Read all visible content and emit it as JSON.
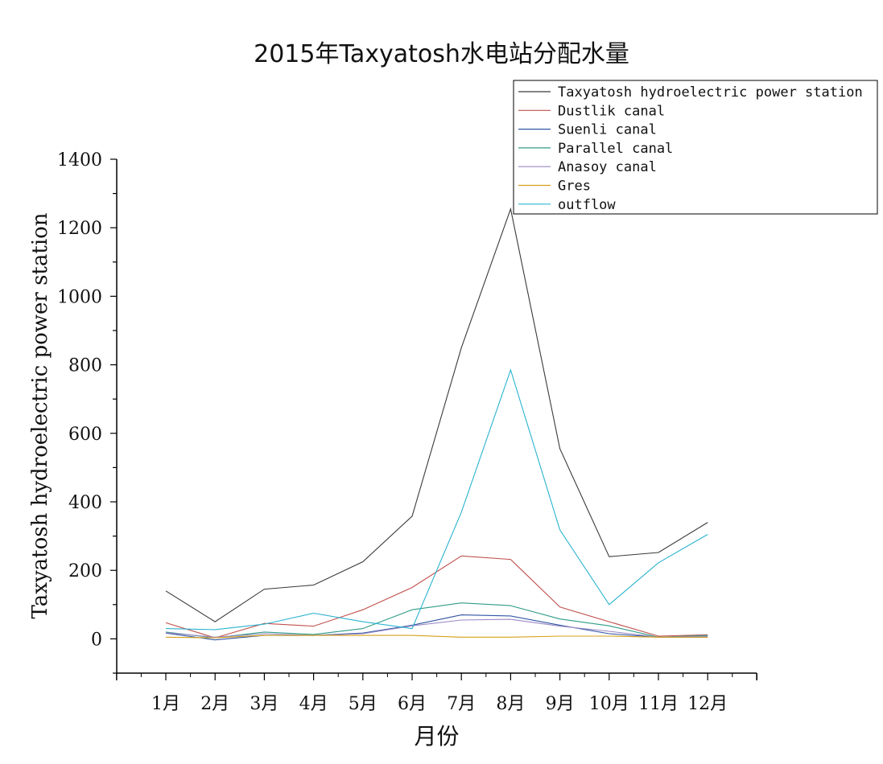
{
  "chart_data": {
    "type": "line",
    "title": "2015年Taxyatosh水电站分配水量",
    "xlabel": "月份",
    "ylabel": "Taxyatosh hydroelectric power station",
    "categories": [
      "1月",
      "2月",
      "3月",
      "4月",
      "5月",
      "6月",
      "7月",
      "8月",
      "9月",
      "10月",
      "11月",
      "12月"
    ],
    "ylim": [
      -100,
      1400
    ],
    "yticks": [
      0,
      200,
      400,
      600,
      800,
      1000,
      1200,
      1400
    ],
    "legend_position": "top-right",
    "grid": false,
    "series": [
      {
        "name": "Taxyatosh hydroelectric power station",
        "color": "#3a3a3a",
        "values": [
          140,
          50,
          145,
          157,
          225,
          358,
          850,
          1255,
          555,
          240,
          252,
          340
        ]
      },
      {
        "name": "Dustlik canal",
        "color": "#c0504d",
        "values": [
          47,
          3,
          45,
          37,
          85,
          150,
          242,
          232,
          93,
          50,
          8,
          12
        ]
      },
      {
        "name": "Suenli canal",
        "color": "#2f55a4",
        "values": [
          17,
          -3,
          10,
          10,
          17,
          40,
          70,
          67,
          40,
          15,
          5,
          5
        ]
      },
      {
        "name": "Parallel canal",
        "color": "#2e9c86",
        "values": [
          20,
          3,
          20,
          13,
          30,
          85,
          105,
          97,
          58,
          38,
          5,
          10
        ]
      },
      {
        "name": "Anasoy canal",
        "color": "#9a88c4",
        "values": [
          18,
          5,
          15,
          10,
          15,
          38,
          55,
          57,
          37,
          22,
          5,
          8
        ]
      },
      {
        "name": "Gres",
        "color": "#d4a017",
        "values": [
          5,
          3,
          10,
          10,
          10,
          10,
          5,
          5,
          8,
          8,
          5,
          5
        ]
      },
      {
        "name": "outflow",
        "color": "#2ab3cf",
        "values": [
          30,
          27,
          43,
          75,
          50,
          30,
          370,
          785,
          318,
          100,
          222,
          305
        ]
      }
    ]
  }
}
